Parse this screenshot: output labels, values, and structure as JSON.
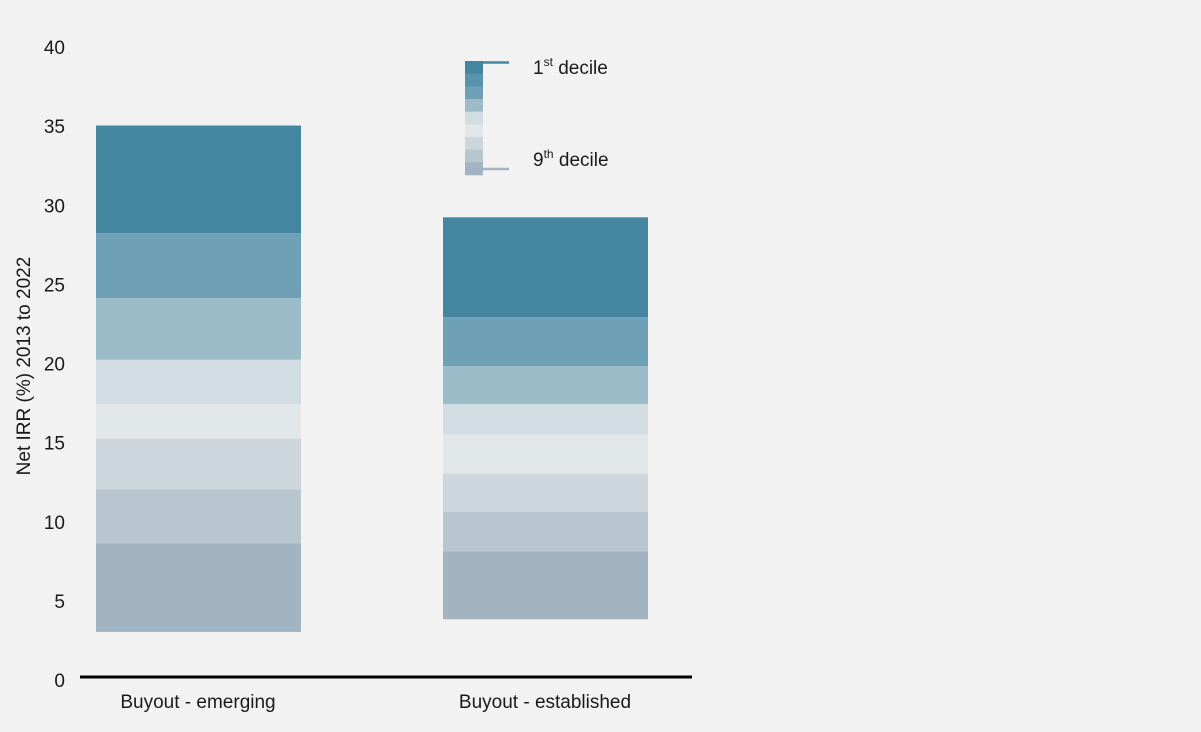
{
  "chart_data": {
    "type": "bar",
    "subtype": "stacked-decile-range",
    "ylabel": "Net IRR (%) 2013 to 2022",
    "xlabel": "",
    "ylim": [
      0,
      40
    ],
    "yticks": [
      0,
      5,
      10,
      15,
      20,
      25,
      30,
      35,
      40
    ],
    "grid": false,
    "categories": [
      "Buyout - emerging",
      "Buyout - established"
    ],
    "series": [
      {
        "name": "Buyout - emerging",
        "boundaries": [
          3.1,
          8.7,
          12.1,
          15.3,
          17.5,
          20.3,
          24.2,
          28.3,
          35.1
        ]
      },
      {
        "name": "Buyout - established",
        "boundaries": [
          3.9,
          8.2,
          10.7,
          13.1,
          15.6,
          17.5,
          19.9,
          23.0,
          29.3
        ]
      }
    ],
    "band_colors": [
      "#a2b4c1",
      "#b8c6cf",
      "#cdd6dd",
      "#e1e6e8",
      "#d1dde3",
      "#9bbbc9",
      "#6ea1b6",
      "#44859f"
    ],
    "legend": {
      "position": "top-center",
      "top_label": {
        "base": "1",
        "sup": "st",
        "rest": " decile"
      },
      "bottom_label": {
        "base": "9",
        "sup": "th",
        "rest": " decile"
      },
      "swatch_colors": [
        "#44859f",
        "#5993ab",
        "#6ea1b6",
        "#9bbbc9",
        "#d1dde3",
        "#e1e6e8",
        "#cdd6dd",
        "#b8c6cf",
        "#a2b4c1"
      ]
    },
    "axis_color": "#000000"
  }
}
